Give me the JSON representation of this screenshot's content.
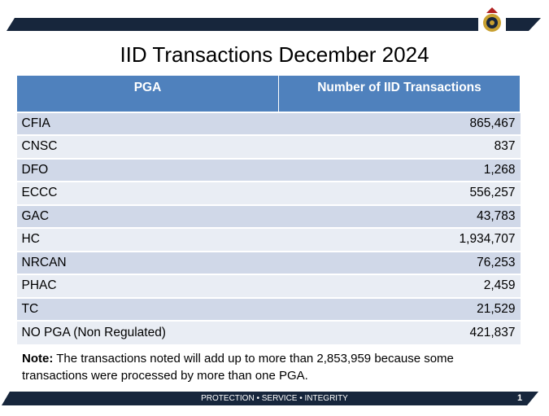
{
  "title": "IID Transactions December 2024",
  "table": {
    "header": [
      "PGA",
      "Number of IID Transactions"
    ],
    "rows": [
      [
        "CFIA",
        "865,467"
      ],
      [
        "CNSC",
        "837"
      ],
      [
        "DFO",
        "1,268"
      ],
      [
        "ECCC",
        "556,257"
      ],
      [
        "GAC",
        "43,783"
      ],
      [
        "HC",
        "1,934,707"
      ],
      [
        "NRCAN",
        "76,253"
      ],
      [
        "PHAC",
        "2,459"
      ],
      [
        "TC",
        "21,529"
      ],
      [
        "NO PGA (Non Regulated)",
        "421,837"
      ]
    ]
  },
  "note": {
    "label": "Note:",
    "text": "The transactions noted will add up to more than 2,853,959 because some transactions were processed by more than one PGA."
  },
  "footer": {
    "motto": "PROTECTION • SERVICE • INTEGRITY",
    "page": "1"
  }
}
